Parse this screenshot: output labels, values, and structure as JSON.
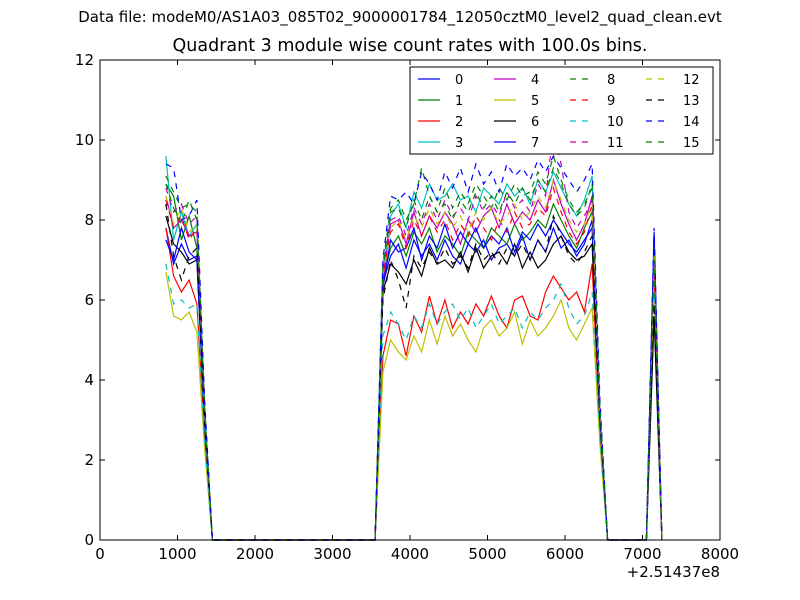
{
  "figure": {
    "suptitle": "Data file: modeM0/AS1A03_085T02_9000001784_12050cztM0_level2_quad_clean.evt"
  },
  "chart_data": {
    "type": "line",
    "title": "Quadrant 3 module wise count rates with 100.0s bins.",
    "xlabel": "",
    "ylabel": "",
    "x_offset_label": "+2.51437e8",
    "xlim": [
      0,
      8000
    ],
    "ylim": [
      0,
      12
    ],
    "xticks": [
      0,
      1000,
      2000,
      3000,
      4000,
      5000,
      6000,
      7000,
      8000
    ],
    "yticks": [
      0,
      2,
      4,
      6,
      8,
      10,
      12
    ],
    "grid": false,
    "legend_position": "top-right",
    "x": [
      850,
      950,
      1050,
      1150,
      1250,
      1350,
      1450,
      1550,
      3550,
      3650,
      3750,
      3850,
      3950,
      4050,
      4150,
      4250,
      4350,
      4450,
      4550,
      4650,
      4750,
      4850,
      4950,
      5050,
      5150,
      5250,
      5350,
      5450,
      5550,
      5650,
      5750,
      5850,
      5950,
      6050,
      6150,
      6250,
      6350,
      6450,
      6550,
      6650,
      7050,
      7150,
      7250
    ],
    "series": [
      {
        "name": "0",
        "color": "#0000ff",
        "dash": false,
        "values": [
          7.8,
          6.9,
          7.4,
          7.0,
          7.1,
          3.0,
          0,
          0,
          0,
          6.4,
          7.1,
          7.4,
          6.8,
          7.5,
          7.1,
          7.4,
          7.0,
          7.5,
          7.1,
          6.9,
          7.4,
          7.2,
          7.5,
          7.0,
          7.3,
          7.4,
          7.1,
          7.6,
          7.0,
          7.5,
          7.2,
          7.8,
          7.3,
          7.5,
          7.1,
          7.4,
          8.0,
          3.0,
          0,
          0,
          0,
          7.7,
          0
        ]
      },
      {
        "name": "1",
        "color": "#008000",
        "dash": false,
        "values": [
          8.9,
          8.6,
          7.5,
          8.1,
          7.3,
          3.0,
          0,
          0,
          0,
          6.5,
          7.3,
          7.6,
          7.1,
          7.7,
          7.4,
          7.8,
          7.2,
          7.6,
          7.4,
          7.1,
          7.7,
          7.5,
          7.3,
          7.8,
          7.6,
          7.4,
          7.9,
          7.5,
          7.7,
          8.0,
          7.8,
          8.4,
          8.0,
          7.6,
          7.3,
          7.8,
          8.2,
          3.0,
          0,
          0,
          0,
          7.0,
          0
        ]
      },
      {
        "name": "2",
        "color": "#ff0000",
        "dash": false,
        "values": [
          7.8,
          6.6,
          6.2,
          6.5,
          5.9,
          2.6,
          0,
          0,
          0,
          4.6,
          5.5,
          5.4,
          4.6,
          5.6,
          5.2,
          6.1,
          5.4,
          6.0,
          5.3,
          5.7,
          5.4,
          5.9,
          5.6,
          6.1,
          5.6,
          5.3,
          6.0,
          6.1,
          5.6,
          5.5,
          6.2,
          6.6,
          6.3,
          6.0,
          6.2,
          5.7,
          6.9,
          2.7,
          0,
          0,
          0,
          6.8,
          0
        ]
      },
      {
        "name": "3",
        "color": "#00bfbf",
        "dash": false,
        "values": [
          9.6,
          7.5,
          8.2,
          7.6,
          7.9,
          3.2,
          0,
          0,
          0,
          6.6,
          8.1,
          8.4,
          7.8,
          8.7,
          8.3,
          8.9,
          8.5,
          8.6,
          8.9,
          8.5,
          8.6,
          8.2,
          8.8,
          8.6,
          8.4,
          8.9,
          8.6,
          8.8,
          8.4,
          9.0,
          8.7,
          9.2,
          8.8,
          8.4,
          8.1,
          8.5,
          9.1,
          3.2,
          0,
          0,
          0,
          7.1,
          0
        ]
      },
      {
        "name": "4",
        "color": "#bf00bf",
        "dash": false,
        "values": [
          8.6,
          7.8,
          8.0,
          7.6,
          7.7,
          3.1,
          0,
          0,
          0,
          6.4,
          7.9,
          8.0,
          7.4,
          8.2,
          7.6,
          8.1,
          7.8,
          8.2,
          7.9,
          7.4,
          8.0,
          7.7,
          8.1,
          8.3,
          7.8,
          8.4,
          7.9,
          8.2,
          8.0,
          8.5,
          8.2,
          9.0,
          8.4,
          7.9,
          7.5,
          7.9,
          8.6,
          3.1,
          0,
          0,
          0,
          7.2,
          0
        ]
      },
      {
        "name": "5",
        "color": "#bfbf00",
        "dash": false,
        "values": [
          6.7,
          5.6,
          5.5,
          5.7,
          5.2,
          2.3,
          0,
          0,
          0,
          4.2,
          5.0,
          4.7,
          4.5,
          5.1,
          4.7,
          5.5,
          4.9,
          5.6,
          5.1,
          5.4,
          5.0,
          4.7,
          5.3,
          5.5,
          5.1,
          5.3,
          5.7,
          4.9,
          5.5,
          5.1,
          5.3,
          5.6,
          6.0,
          5.3,
          5.0,
          5.4,
          5.8,
          2.4,
          0,
          0,
          0,
          6.5,
          0
        ]
      },
      {
        "name": "6",
        "color": "#000000",
        "dash": false,
        "values": [
          8.1,
          7.4,
          7.2,
          6.9,
          7.0,
          2.9,
          0,
          0,
          0,
          6.2,
          6.9,
          6.7,
          6.4,
          7.0,
          6.6,
          7.3,
          6.9,
          7.0,
          6.8,
          7.2,
          6.7,
          7.3,
          6.8,
          7.1,
          7.2,
          6.9,
          7.4,
          6.8,
          7.2,
          6.8,
          7.0,
          7.4,
          7.6,
          7.2,
          7.0,
          7.1,
          7.4,
          3.0,
          0,
          0,
          0,
          5.6,
          0
        ]
      },
      {
        "name": "7",
        "color": "#0000ff",
        "dash": false,
        "values": [
          7.5,
          7.0,
          7.8,
          7.2,
          7.0,
          3.0,
          0,
          0,
          0,
          6.3,
          7.5,
          7.2,
          7.3,
          7.8,
          7.0,
          7.6,
          7.3,
          7.9,
          7.3,
          7.7,
          7.4,
          7.8,
          7.3,
          7.6,
          7.4,
          7.8,
          7.2,
          7.7,
          7.5,
          7.9,
          7.6,
          8.0,
          7.7,
          7.4,
          7.2,
          7.5,
          7.8,
          3.0,
          0,
          0,
          0,
          7.6,
          0
        ]
      },
      {
        "name": "8",
        "color": "#008000",
        "dash": true,
        "values": [
          9.1,
          8.7,
          8.3,
          8.4,
          8.2,
          3.4,
          0,
          0,
          0,
          6.9,
          8.3,
          8.5,
          8.0,
          8.4,
          9.3,
          8.6,
          8.2,
          8.8,
          8.3,
          8.7,
          8.4,
          8.9,
          8.6,
          8.3,
          8.8,
          8.5,
          8.9,
          8.6,
          8.7,
          9.2,
          8.9,
          9.6,
          9.0,
          8.5,
          8.2,
          8.4,
          8.8,
          3.4,
          0,
          0,
          0,
          7.3,
          0
        ]
      },
      {
        "name": "9",
        "color": "#ff0000",
        "dash": true,
        "values": [
          8.5,
          7.8,
          8.1,
          7.5,
          7.8,
          3.1,
          0,
          0,
          0,
          6.6,
          7.7,
          7.9,
          7.3,
          8.0,
          7.6,
          8.1,
          7.7,
          8.0,
          7.5,
          7.9,
          7.6,
          8.1,
          7.8,
          7.5,
          8.0,
          7.7,
          8.2,
          7.8,
          7.9,
          8.3,
          8.1,
          8.8,
          8.2,
          7.7,
          7.4,
          7.7,
          8.4,
          3.1,
          0,
          0,
          0,
          6.9,
          0
        ]
      },
      {
        "name": "10",
        "color": "#00bfbf",
        "dash": true,
        "values": [
          6.9,
          5.9,
          6.0,
          5.8,
          5.9,
          2.5,
          0,
          0,
          0,
          5.1,
          5.7,
          5.4,
          5.0,
          5.6,
          5.3,
          5.9,
          5.4,
          5.7,
          5.9,
          5.5,
          5.8,
          5.3,
          5.6,
          5.9,
          5.4,
          5.6,
          5.8,
          5.3,
          5.7,
          5.5,
          5.8,
          6.0,
          6.4,
          5.8,
          5.4,
          5.6,
          6.2,
          2.6,
          0,
          0,
          0,
          6.2,
          0
        ]
      },
      {
        "name": "11",
        "color": "#bf00bf",
        "dash": true,
        "values": [
          8.8,
          8.2,
          8.4,
          7.9,
          8.1,
          3.2,
          0,
          0,
          0,
          6.7,
          8.0,
          8.1,
          7.6,
          8.3,
          7.9,
          8.4,
          8.0,
          8.5,
          8.1,
          8.3,
          8.0,
          8.6,
          8.2,
          8.4,
          8.1,
          8.7,
          8.3,
          8.5,
          8.2,
          8.9,
          8.6,
          10.2,
          9.4,
          8.2,
          7.8,
          8.1,
          8.5,
          3.2,
          0,
          0,
          0,
          7.0,
          0
        ]
      },
      {
        "name": "12",
        "color": "#bfbf00",
        "dash": true,
        "values": [
          8.6,
          7.9,
          8.3,
          7.7,
          7.9,
          3.2,
          0,
          0,
          0,
          6.6,
          7.8,
          8.0,
          7.5,
          8.1,
          7.8,
          8.3,
          7.9,
          8.2,
          7.8,
          8.1,
          7.7,
          8.2,
          8.0,
          8.3,
          7.9,
          8.1,
          8.4,
          8.0,
          8.2,
          8.6,
          8.3,
          9.0,
          8.5,
          8.0,
          7.7,
          7.9,
          8.4,
          3.2,
          0,
          0,
          0,
          7.1,
          0
        ]
      },
      {
        "name": "13",
        "color": "#000000",
        "dash": true,
        "values": [
          8.4,
          7.1,
          6.5,
          7.1,
          7.3,
          3.0,
          0,
          0,
          0,
          6.0,
          7.0,
          6.5,
          5.8,
          7.1,
          6.8,
          7.2,
          6.9,
          7.3,
          6.9,
          7.1,
          6.8,
          7.4,
          7.0,
          7.2,
          6.9,
          7.3,
          7.1,
          7.4,
          7.0,
          7.5,
          7.2,
          8.1,
          7.6,
          7.1,
          6.9,
          7.2,
          7.6,
          3.0,
          0,
          0,
          0,
          5.9,
          0
        ]
      },
      {
        "name": "14",
        "color": "#0000ff",
        "dash": true,
        "values": [
          9.4,
          9.3,
          8.0,
          8.1,
          8.5,
          3.5,
          0,
          0,
          0,
          7.0,
          8.6,
          8.5,
          8.7,
          8.4,
          9.2,
          8.9,
          8.5,
          9.2,
          8.8,
          9.3,
          8.7,
          9.4,
          8.9,
          9.2,
          8.7,
          9.4,
          9.1,
          9.3,
          9.0,
          9.5,
          9.2,
          9.6,
          9.3,
          9.0,
          8.7,
          9.0,
          9.4,
          3.5,
          0,
          0,
          0,
          7.8,
          0
        ]
      },
      {
        "name": "15",
        "color": "#008000",
        "dash": true,
        "values": [
          8.9,
          8.3,
          7.9,
          8.5,
          8.0,
          3.3,
          0,
          0,
          0,
          6.8,
          8.2,
          8.3,
          7.8,
          8.5,
          8.0,
          8.6,
          8.2,
          8.4,
          8.0,
          8.5,
          8.2,
          8.7,
          8.3,
          8.6,
          8.2,
          8.7,
          8.4,
          8.8,
          8.5,
          9.0,
          8.7,
          9.3,
          8.9,
          8.4,
          8.1,
          8.3,
          8.9,
          3.3,
          0,
          0,
          0,
          7.0,
          0
        ]
      }
    ]
  }
}
